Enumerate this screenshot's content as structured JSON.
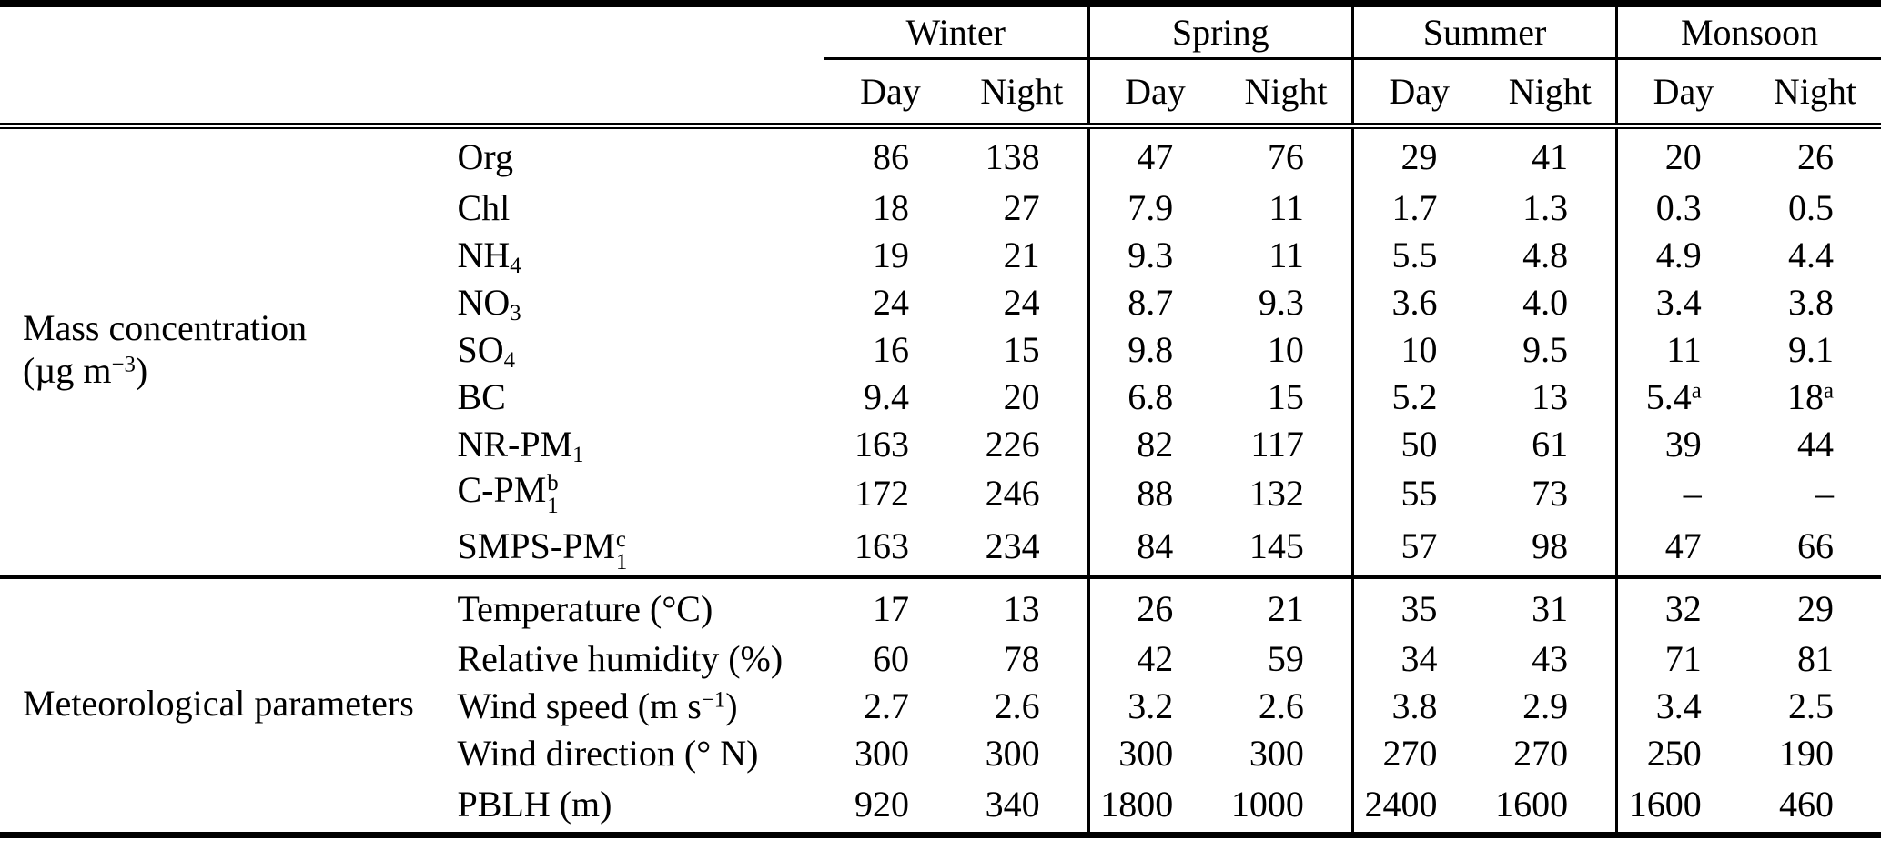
{
  "header": {
    "seasons": [
      {
        "label": "Winter"
      },
      {
        "label": "Spring"
      },
      {
        "label": "Summer"
      },
      {
        "label": "Monsoon"
      }
    ],
    "subheader": {
      "day": "Day",
      "night": "Night"
    }
  },
  "sections": [
    {
      "name": "mass-concentration",
      "group_lines": [
        [
          {
            "t": "Mass concentration"
          }
        ],
        [
          {
            "t": "(µg m"
          },
          {
            "sup": "−3"
          },
          {
            "t": ")"
          }
        ]
      ],
      "rows": [
        {
          "name": "org",
          "label": [
            {
              "t": "Org"
            }
          ],
          "values": [
            "86",
            "138",
            "47",
            "76",
            "29",
            "41",
            "20",
            "26"
          ]
        },
        {
          "name": "chl",
          "label": [
            {
              "t": "Chl"
            }
          ],
          "values": [
            "18",
            "27",
            "7.9",
            "11",
            "1.7",
            "1.3",
            "0.3",
            "0.5"
          ]
        },
        {
          "name": "nh4",
          "label": [
            {
              "t": "NH"
            },
            {
              "sub": "4"
            }
          ],
          "values": [
            "19",
            "21",
            "9.3",
            "11",
            "5.5",
            "4.8",
            "4.9",
            "4.4"
          ]
        },
        {
          "name": "no3",
          "label": [
            {
              "t": "NO"
            },
            {
              "sub": "3"
            }
          ],
          "values": [
            "24",
            "24",
            "8.7",
            "9.3",
            "3.6",
            "4.0",
            "3.4",
            "3.8"
          ]
        },
        {
          "name": "so4",
          "label": [
            {
              "t": "SO"
            },
            {
              "sub": "4"
            }
          ],
          "values": [
            "16",
            "15",
            "9.8",
            "10",
            "10",
            "9.5",
            "11",
            "9.1"
          ]
        },
        {
          "name": "bc",
          "label": [
            {
              "t": "BC"
            }
          ],
          "values": [
            "9.4",
            "20",
            "6.8",
            "15",
            "5.2",
            "13",
            [
              {
                "t": "5.4"
              },
              {
                "sup": "a"
              }
            ],
            [
              {
                "t": "18"
              },
              {
                "sup": "a"
              }
            ]
          ]
        },
        {
          "name": "nr-pm1",
          "label": [
            {
              "t": "NR-PM"
            },
            {
              "sub": "1"
            }
          ],
          "values": [
            "163",
            "226",
            "82",
            "117",
            "50",
            "61",
            "39",
            "44"
          ]
        },
        {
          "name": "c-pm1",
          "label": [
            {
              "t": "C-PM"
            },
            {
              "stack": {
                "sup": "b",
                "sub": "1"
              }
            }
          ],
          "values": [
            "172",
            "246",
            "88",
            "132",
            "55",
            "73",
            "–",
            "–"
          ]
        },
        {
          "name": "smps-pm1",
          "label": [
            {
              "t": "SMPS-PM"
            },
            {
              "stack": {
                "sup": "c",
                "sub": "1"
              }
            }
          ],
          "values": [
            "163",
            "234",
            "84",
            "145",
            "57",
            "98",
            "47",
            "66"
          ]
        }
      ]
    },
    {
      "name": "meteorological-parameters",
      "group_lines": [
        [
          {
            "t": "Meteorological parameters"
          }
        ]
      ],
      "rows": [
        {
          "name": "temperature",
          "label": [
            {
              "t": "Temperature (°C)"
            }
          ],
          "values": [
            "17",
            "13",
            "26",
            "21",
            "35",
            "31",
            "32",
            "29"
          ]
        },
        {
          "name": "relative-humidity",
          "label": [
            {
              "t": "Relative humidity (%)"
            }
          ],
          "values": [
            "60",
            "78",
            "42",
            "59",
            "34",
            "43",
            "71",
            "81"
          ]
        },
        {
          "name": "wind-speed",
          "label": [
            {
              "t": "Wind speed (m s"
            },
            {
              "sup": "−1"
            },
            {
              "t": ")"
            }
          ],
          "values": [
            "2.7",
            "2.6",
            "3.2",
            "2.6",
            "3.8",
            "2.9",
            "3.4",
            "2.5"
          ]
        },
        {
          "name": "wind-direction",
          "label": [
            {
              "t": "Wind direction (° N)"
            }
          ],
          "values": [
            "300",
            "300",
            "300",
            "300",
            "270",
            "270",
            "250",
            "190"
          ]
        },
        {
          "name": "pblh",
          "label": [
            {
              "t": "PBLH (m)"
            }
          ],
          "values": [
            "920",
            "340",
            "1800",
            "1000",
            "2400",
            "1600",
            "1600",
            "460"
          ]
        }
      ]
    }
  ],
  "colors": {
    "text": "#000000",
    "rule": "#000000",
    "background": "#ffffff"
  }
}
